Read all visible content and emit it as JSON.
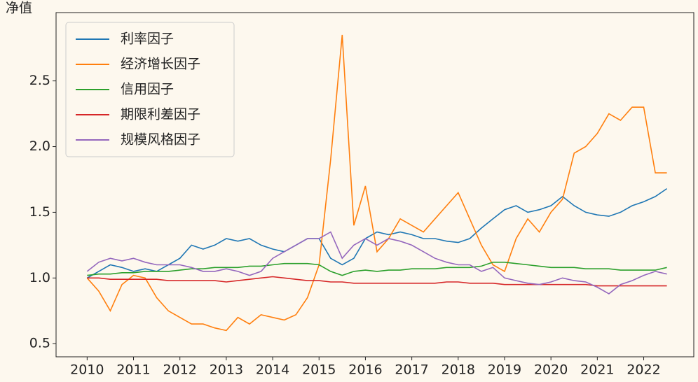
{
  "chart_data": {
    "type": "line",
    "ylabel": "净值",
    "x": [
      2010,
      2010.25,
      2010.5,
      2010.75,
      2011,
      2011.25,
      2011.5,
      2011.75,
      2012,
      2012.25,
      2012.5,
      2012.75,
      2013,
      2013.25,
      2013.5,
      2013.75,
      2014,
      2014.25,
      2014.5,
      2014.75,
      2015,
      2015.25,
      2015.5,
      2015.75,
      2016,
      2016.25,
      2016.5,
      2016.75,
      2017,
      2017.25,
      2017.5,
      2017.75,
      2018,
      2018.25,
      2018.5,
      2018.75,
      2019,
      2019.25,
      2019.5,
      2019.75,
      2020,
      2020.25,
      2020.5,
      2020.75,
      2021,
      2021.25,
      2021.5,
      2021.75,
      2022,
      2022.25,
      2022.5
    ],
    "series": [
      {
        "name": "利率因子",
        "color": "#1f77b4",
        "values": [
          1.0,
          1.05,
          1.1,
          1.08,
          1.05,
          1.07,
          1.05,
          1.1,
          1.15,
          1.25,
          1.22,
          1.25,
          1.3,
          1.28,
          1.3,
          1.25,
          1.22,
          1.2,
          1.25,
          1.3,
          1.3,
          1.15,
          1.1,
          1.15,
          1.3,
          1.35,
          1.33,
          1.35,
          1.33,
          1.3,
          1.3,
          1.28,
          1.27,
          1.3,
          1.38,
          1.45,
          1.52,
          1.55,
          1.5,
          1.52,
          1.55,
          1.62,
          1.55,
          1.5,
          1.48,
          1.47,
          1.5,
          1.55,
          1.58,
          1.62,
          1.68
        ]
      },
      {
        "name": "经济增长因子",
        "color": "#ff7f0e",
        "values": [
          1.0,
          0.9,
          0.75,
          0.95,
          1.02,
          1.0,
          0.85,
          0.75,
          0.7,
          0.65,
          0.65,
          0.62,
          0.6,
          0.7,
          0.65,
          0.72,
          0.7,
          0.68,
          0.72,
          0.85,
          1.1,
          1.9,
          2.85,
          1.4,
          1.7,
          1.2,
          1.3,
          1.45,
          1.4,
          1.35,
          1.45,
          1.55,
          1.65,
          1.45,
          1.25,
          1.1,
          1.05,
          1.3,
          1.45,
          1.35,
          1.5,
          1.6,
          1.95,
          2.0,
          2.1,
          2.25,
          2.2,
          2.3,
          2.3,
          1.8,
          1.8
        ]
      },
      {
        "name": "信用因子",
        "color": "#2ca02c",
        "values": [
          1.02,
          1.03,
          1.03,
          1.04,
          1.04,
          1.05,
          1.05,
          1.05,
          1.06,
          1.07,
          1.07,
          1.08,
          1.08,
          1.08,
          1.09,
          1.09,
          1.1,
          1.11,
          1.11,
          1.11,
          1.1,
          1.05,
          1.02,
          1.05,
          1.06,
          1.05,
          1.06,
          1.06,
          1.07,
          1.07,
          1.07,
          1.08,
          1.08,
          1.08,
          1.09,
          1.12,
          1.12,
          1.11,
          1.1,
          1.09,
          1.08,
          1.08,
          1.08,
          1.07,
          1.07,
          1.07,
          1.06,
          1.06,
          1.06,
          1.06,
          1.08
        ]
      },
      {
        "name": "期限利差因子",
        "color": "#d62728",
        "values": [
          1.0,
          1.0,
          0.99,
          0.99,
          0.99,
          0.99,
          0.99,
          0.98,
          0.98,
          0.98,
          0.98,
          0.98,
          0.97,
          0.98,
          0.99,
          1.0,
          1.01,
          1.0,
          0.99,
          0.98,
          0.98,
          0.97,
          0.97,
          0.96,
          0.96,
          0.96,
          0.96,
          0.96,
          0.96,
          0.96,
          0.96,
          0.97,
          0.97,
          0.96,
          0.96,
          0.96,
          0.95,
          0.95,
          0.95,
          0.95,
          0.95,
          0.95,
          0.95,
          0.95,
          0.94,
          0.94,
          0.94,
          0.94,
          0.94,
          0.94,
          0.94
        ]
      },
      {
        "name": "规模风格因子",
        "color": "#9467bd",
        "values": [
          1.05,
          1.12,
          1.15,
          1.13,
          1.15,
          1.12,
          1.1,
          1.1,
          1.1,
          1.08,
          1.05,
          1.05,
          1.07,
          1.05,
          1.02,
          1.05,
          1.15,
          1.2,
          1.25,
          1.3,
          1.3,
          1.35,
          1.15,
          1.25,
          1.3,
          1.25,
          1.3,
          1.28,
          1.25,
          1.2,
          1.15,
          1.12,
          1.1,
          1.1,
          1.05,
          1.08,
          1.0,
          0.98,
          0.96,
          0.95,
          0.97,
          1.0,
          0.98,
          0.97,
          0.93,
          0.88,
          0.95,
          0.98,
          1.02,
          1.05,
          1.03
        ]
      }
    ],
    "xlim": [
      2009.33,
      2023.08
    ],
    "xticks": [
      2010,
      2011,
      2012,
      2013,
      2014,
      2015,
      2016,
      2017,
      2018,
      2019,
      2020,
      2021,
      2022
    ],
    "ylim": [
      0.4,
      3.02
    ],
    "yticks": [
      0.5,
      {
        "value": 1,
        "label": "1.0"
      },
      1.5,
      {
        "value": 2,
        "label": "2.0"
      },
      2.5
    ],
    "legend": "upper left"
  }
}
